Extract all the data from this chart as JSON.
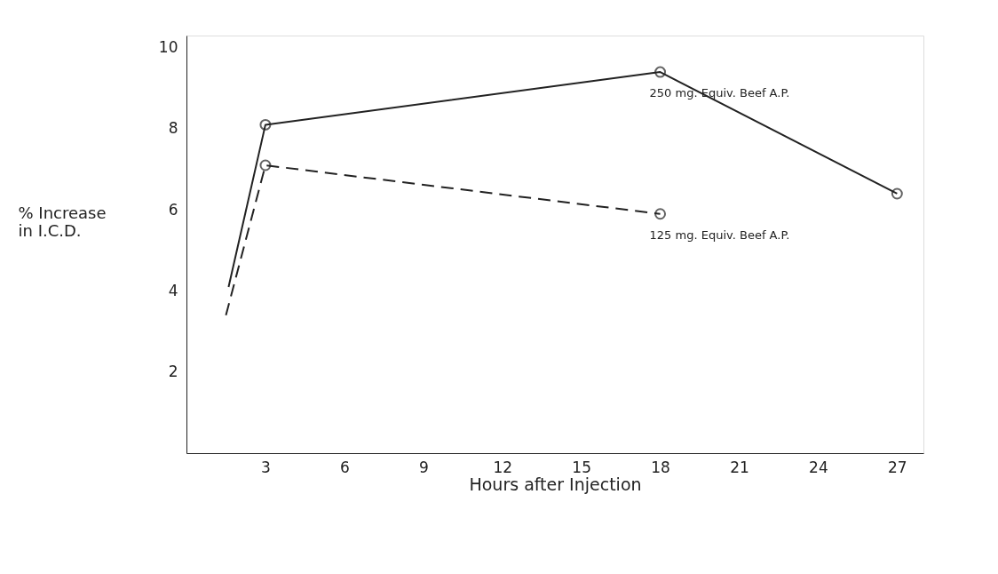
{
  "chart_data": {
    "type": "line",
    "xlabel": "Hours after Injection",
    "ylabel": "% Increase\nin I.C.D.",
    "xlim": [
      0,
      28
    ],
    "ylim": [
      0,
      10.3
    ],
    "xticks": [
      3,
      6,
      9,
      12,
      15,
      18,
      21,
      24,
      27
    ],
    "yticks": [
      2,
      4,
      6,
      8,
      10
    ],
    "grid": false,
    "legend": false,
    "marker": "circle",
    "series": [
      {
        "name": "250 mg. Equiv. Beef A.P.",
        "color": "#222222",
        "line_style": "solid",
        "x": [
          1.6,
          3,
          18,
          27
        ],
        "values": [
          4.1,
          8.1,
          9.4,
          6.4
        ]
      },
      {
        "name": "125 mg. Equiv. Beef A.P.",
        "color": "#222222",
        "line_style": "dashed",
        "x": [
          1.5,
          3,
          18
        ],
        "values": [
          3.4,
          7.1,
          5.9
        ]
      }
    ]
  }
}
